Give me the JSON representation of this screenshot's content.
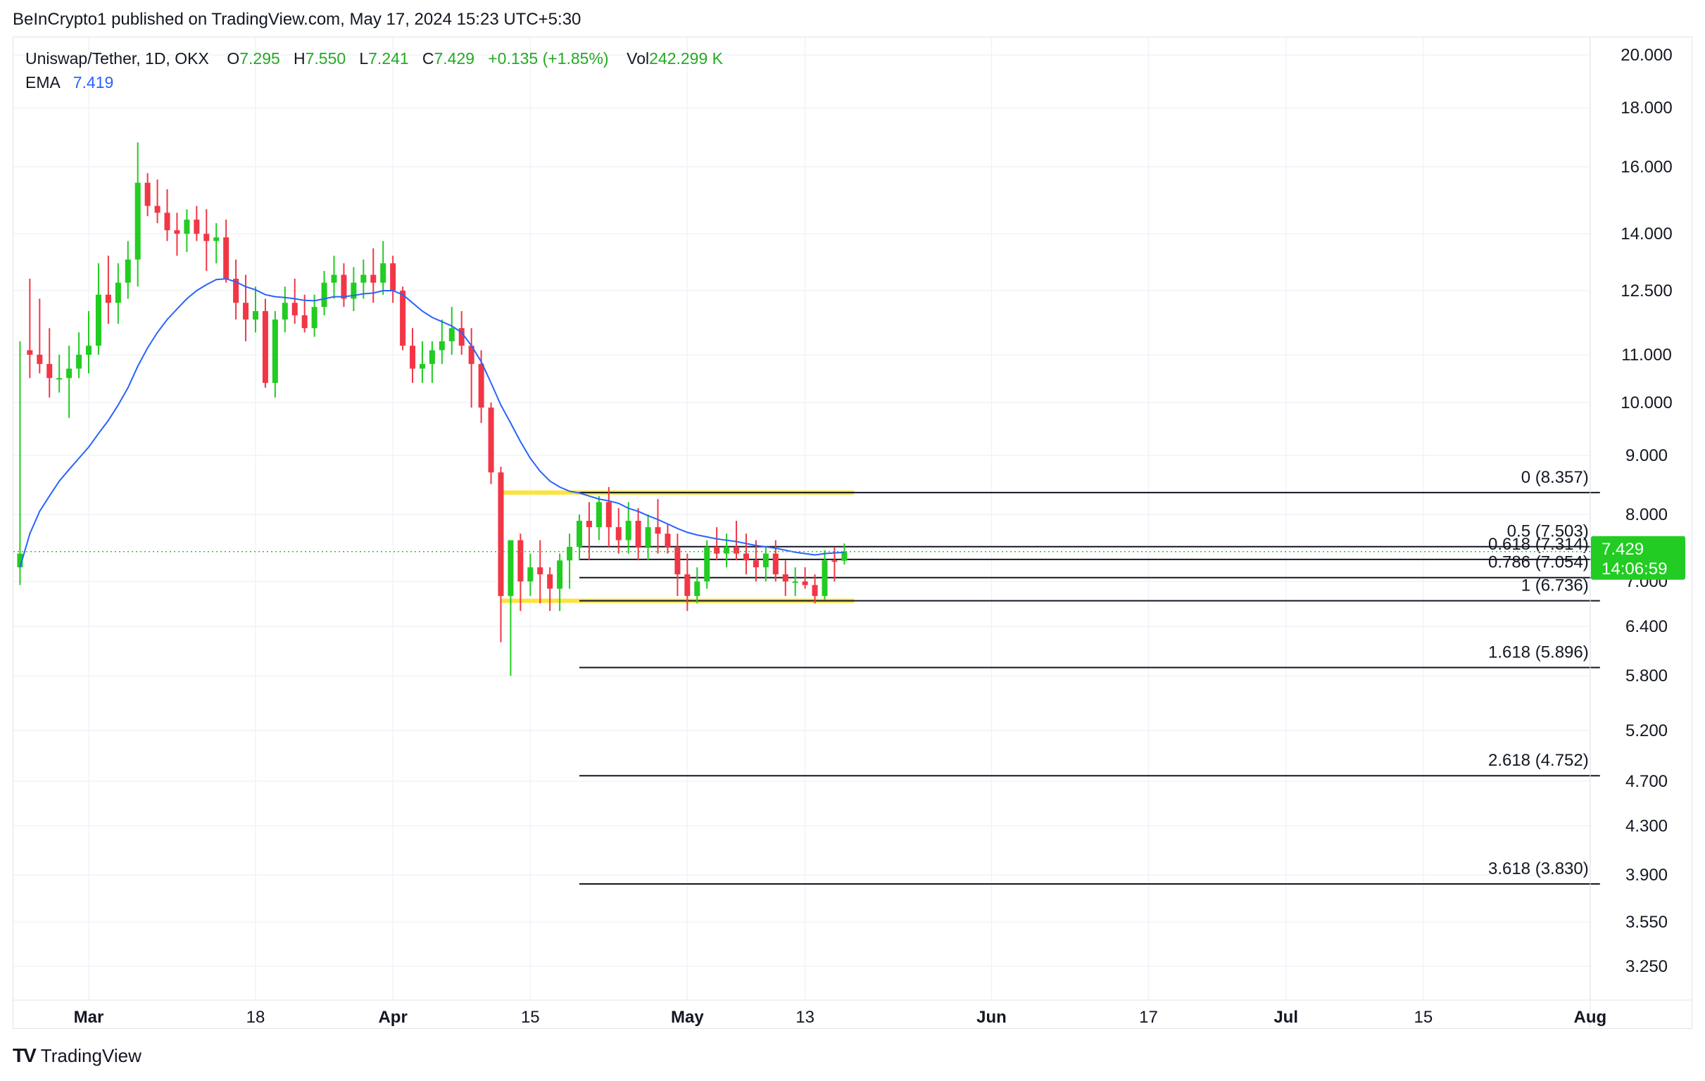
{
  "header": {
    "published": "BeInCrypto1 published on TradingView.com, May 17, 2024 15:23 UTC+5:30"
  },
  "legend": {
    "symbol": "Uniswap/Tether, 1D, OKX",
    "open_label": "O",
    "open": "7.295",
    "high_label": "H",
    "high": "7.550",
    "low_label": "L",
    "low": "7.241",
    "close_label": "C",
    "close": "7.429",
    "change": "+0.135 (+1.85%)",
    "vol_label": "Vol",
    "vol": "242.299 K",
    "ema_label": "EMA",
    "ema": "7.419"
  },
  "footer": {
    "brand": "TradingView",
    "logo": "TV"
  },
  "colors": {
    "up": "#22cc22",
    "down": "#f23645",
    "ema": "#2962ff",
    "zone": "#ffe23a",
    "fib": "#131722",
    "price_badge": "#22cc22"
  },
  "chart_data": {
    "type": "candlestick",
    "scale": "log",
    "grid": true,
    "y_ticks": [
      "20.000",
      "18.000",
      "16.000",
      "14.000",
      "12.500",
      "11.000",
      "10.000",
      "9.000",
      "8.000",
      "7.000",
      "6.400",
      "5.800",
      "5.200",
      "4.700",
      "4.300",
      "3.900",
      "3.550",
      "3.250"
    ],
    "y_tick_values": [
      20,
      18,
      16,
      14,
      12.5,
      11,
      10,
      9,
      8,
      7,
      6.4,
      5.8,
      5.2,
      4.7,
      4.3,
      3.9,
      3.55,
      3.25
    ],
    "x_ticks": [
      "Mar",
      "18",
      "Apr",
      "15",
      "May",
      "13",
      "Jun",
      "17",
      "Jul",
      "15",
      "Aug"
    ],
    "x_tick_days": [
      0,
      17,
      31,
      45,
      61,
      73,
      92,
      108,
      122,
      136,
      153
    ],
    "x_tick_bold": [
      true,
      false,
      true,
      false,
      true,
      false,
      true,
      false,
      true,
      false,
      true
    ],
    "last_price": "7.429",
    "countdown": "14:06:59",
    "ohlc": [
      [
        -7,
        7.2,
        11.3,
        6.95,
        7.4
      ],
      [
        -6,
        11.1,
        12.8,
        10.5,
        11.0
      ],
      [
        -5,
        11.0,
        12.3,
        10.6,
        10.8
      ],
      [
        -4,
        10.8,
        11.6,
        10.1,
        10.5
      ],
      [
        -3,
        10.5,
        11.0,
        10.2,
        10.5
      ],
      [
        -2,
        10.5,
        11.2,
        9.7,
        10.7
      ],
      [
        -1,
        10.7,
        11.5,
        10.5,
        11.0
      ],
      [
        0,
        11.0,
        12.0,
        10.6,
        11.2
      ],
      [
        1,
        11.2,
        13.2,
        11.0,
        12.4
      ],
      [
        2,
        12.4,
        13.4,
        11.7,
        12.2
      ],
      [
        3,
        12.2,
        13.2,
        11.7,
        12.7
      ],
      [
        4,
        12.7,
        13.8,
        12.3,
        13.3
      ],
      [
        5,
        13.3,
        16.8,
        12.6,
        15.5
      ],
      [
        6,
        15.5,
        15.8,
        14.5,
        14.8
      ],
      [
        7,
        14.8,
        15.6,
        14.3,
        14.6
      ],
      [
        8,
        14.6,
        15.3,
        13.8,
        14.1
      ],
      [
        9,
        14.1,
        14.6,
        13.4,
        14.0
      ],
      [
        10,
        14.0,
        14.7,
        13.5,
        14.4
      ],
      [
        11,
        14.4,
        14.8,
        13.8,
        14.0
      ],
      [
        12,
        14.0,
        14.7,
        13.0,
        13.8
      ],
      [
        13,
        13.8,
        14.3,
        13.2,
        13.9
      ],
      [
        14,
        13.9,
        14.4,
        12.7,
        12.8
      ],
      [
        15,
        12.8,
        13.3,
        11.8,
        12.2
      ],
      [
        16,
        12.2,
        12.9,
        11.3,
        11.8
      ],
      [
        17,
        11.8,
        12.6,
        11.5,
        12.0
      ],
      [
        18,
        12.0,
        12.3,
        10.3,
        10.4
      ],
      [
        19,
        10.4,
        12.0,
        10.1,
        11.8
      ],
      [
        20,
        11.8,
        12.6,
        11.5,
        12.2
      ],
      [
        21,
        12.2,
        12.8,
        11.7,
        11.9
      ],
      [
        22,
        11.9,
        12.4,
        11.5,
        11.6
      ],
      [
        23,
        11.6,
        12.4,
        11.4,
        12.1
      ],
      [
        24,
        12.1,
        13.0,
        11.9,
        12.7
      ],
      [
        25,
        12.7,
        13.4,
        12.3,
        12.9
      ],
      [
        26,
        12.9,
        13.2,
        12.1,
        12.3
      ],
      [
        27,
        12.3,
        13.1,
        12.0,
        12.7
      ],
      [
        28,
        12.7,
        13.3,
        12.3,
        12.9
      ],
      [
        29,
        12.9,
        13.6,
        12.2,
        12.7
      ],
      [
        30,
        12.7,
        13.8,
        12.4,
        13.2
      ],
      [
        31,
        13.2,
        13.4,
        12.2,
        12.5
      ],
      [
        32,
        12.5,
        12.6,
        11.1,
        11.2
      ],
      [
        33,
        11.2,
        11.6,
        10.4,
        10.7
      ],
      [
        34,
        10.7,
        11.3,
        10.4,
        10.8
      ],
      [
        35,
        10.8,
        11.3,
        10.4,
        11.1
      ],
      [
        36,
        11.1,
        11.8,
        10.8,
        11.3
      ],
      [
        37,
        11.3,
        12.1,
        11.0,
        11.6
      ],
      [
        38,
        11.6,
        12.0,
        11.0,
        11.2
      ],
      [
        39,
        11.2,
        11.6,
        9.9,
        10.8
      ],
      [
        40,
        10.8,
        11.1,
        9.6,
        9.9
      ],
      [
        41,
        9.9,
        10.0,
        8.5,
        8.7
      ],
      [
        42,
        8.7,
        8.8,
        6.2,
        6.8
      ],
      [
        43,
        6.8,
        7.6,
        5.8,
        7.6
      ],
      [
        44,
        7.6,
        7.7,
        6.6,
        7.0
      ],
      [
        45,
        7.0,
        7.4,
        6.8,
        7.2
      ],
      [
        46,
        7.2,
        7.6,
        6.7,
        7.1
      ],
      [
        47,
        7.1,
        7.2,
        6.6,
        6.9
      ],
      [
        48,
        6.9,
        7.4,
        6.6,
        7.3
      ],
      [
        49,
        7.3,
        7.7,
        6.9,
        7.5
      ],
      [
        50,
        7.5,
        8.0,
        7.3,
        7.9
      ],
      [
        51,
        7.9,
        8.2,
        7.3,
        7.8
      ],
      [
        52,
        7.8,
        8.3,
        7.6,
        8.2
      ],
      [
        53,
        8.2,
        8.45,
        7.5,
        7.8
      ],
      [
        54,
        7.8,
        8.1,
        7.4,
        7.6
      ],
      [
        55,
        7.6,
        8.2,
        7.4,
        7.9
      ],
      [
        56,
        7.9,
        8.1,
        7.3,
        7.5
      ],
      [
        57,
        7.5,
        8.0,
        7.3,
        7.8
      ],
      [
        58,
        7.8,
        8.25,
        7.4,
        7.7
      ],
      [
        59,
        7.7,
        7.85,
        7.4,
        7.5
      ],
      [
        60,
        7.5,
        7.7,
        6.8,
        7.1
      ],
      [
        61,
        7.1,
        7.4,
        6.6,
        6.8
      ],
      [
        62,
        6.8,
        7.2,
        6.7,
        7.0
      ],
      [
        63,
        7.0,
        7.6,
        6.9,
        7.5
      ],
      [
        64,
        7.5,
        7.8,
        7.3,
        7.4
      ],
      [
        65,
        7.4,
        7.7,
        7.2,
        7.5
      ],
      [
        66,
        7.5,
        7.9,
        7.3,
        7.4
      ],
      [
        67,
        7.4,
        7.7,
        7.1,
        7.3
      ],
      [
        68,
        7.3,
        7.6,
        7.0,
        7.2
      ],
      [
        69,
        7.2,
        7.5,
        7.0,
        7.4
      ],
      [
        70,
        7.4,
        7.6,
        7.0,
        7.1
      ],
      [
        71,
        7.1,
        7.3,
        6.8,
        7.0
      ],
      [
        72,
        7.0,
        7.2,
        6.8,
        7.0
      ],
      [
        73,
        7.0,
        7.2,
        6.9,
        6.95
      ],
      [
        74,
        6.95,
        7.1,
        6.7,
        6.8
      ],
      [
        75,
        6.8,
        7.45,
        6.75,
        7.3
      ],
      [
        76,
        7.3,
        7.5,
        7.0,
        7.29
      ],
      [
        77,
        7.295,
        7.55,
        7.241,
        7.429
      ]
    ],
    "ema_points": [
      [
        -7,
        7.2
      ],
      [
        -6,
        7.7
      ],
      [
        -5,
        8.05
      ],
      [
        -4,
        8.3
      ],
      [
        -3,
        8.55
      ],
      [
        -2,
        8.75
      ],
      [
        -1,
        8.95
      ],
      [
        0,
        9.15
      ],
      [
        1,
        9.4
      ],
      [
        2,
        9.65
      ],
      [
        3,
        9.95
      ],
      [
        4,
        10.3
      ],
      [
        5,
        10.75
      ],
      [
        6,
        11.15
      ],
      [
        7,
        11.5
      ],
      [
        8,
        11.8
      ],
      [
        9,
        12.05
      ],
      [
        10,
        12.3
      ],
      [
        11,
        12.5
      ],
      [
        12,
        12.65
      ],
      [
        13,
        12.78
      ],
      [
        14,
        12.8
      ],
      [
        15,
        12.72
      ],
      [
        16,
        12.6
      ],
      [
        17,
        12.52
      ],
      [
        18,
        12.4
      ],
      [
        19,
        12.35
      ],
      [
        20,
        12.33
      ],
      [
        21,
        12.3
      ],
      [
        22,
        12.26
      ],
      [
        23,
        12.25
      ],
      [
        24,
        12.3
      ],
      [
        25,
        12.35
      ],
      [
        26,
        12.35
      ],
      [
        27,
        12.38
      ],
      [
        28,
        12.42
      ],
      [
        29,
        12.44
      ],
      [
        30,
        12.5
      ],
      [
        31,
        12.5
      ],
      [
        32,
        12.4
      ],
      [
        33,
        12.2
      ],
      [
        34,
        12.0
      ],
      [
        35,
        11.85
      ],
      [
        36,
        11.75
      ],
      [
        37,
        11.65
      ],
      [
        38,
        11.5
      ],
      [
        39,
        11.2
      ],
      [
        40,
        10.85
      ],
      [
        41,
        10.4
      ],
      [
        42,
        9.95
      ],
      [
        43,
        9.6
      ],
      [
        44,
        9.25
      ],
      [
        45,
        8.95
      ],
      [
        46,
        8.72
      ],
      [
        47,
        8.55
      ],
      [
        48,
        8.45
      ],
      [
        49,
        8.38
      ],
      [
        50,
        8.35
      ],
      [
        51,
        8.3
      ],
      [
        52,
        8.25
      ],
      [
        53,
        8.22
      ],
      [
        54,
        8.18
      ],
      [
        55,
        8.1
      ],
      [
        56,
        8.05
      ],
      [
        57,
        7.98
      ],
      [
        58,
        7.92
      ],
      [
        59,
        7.85
      ],
      [
        60,
        7.78
      ],
      [
        61,
        7.72
      ],
      [
        62,
        7.68
      ],
      [
        63,
        7.65
      ],
      [
        64,
        7.62
      ],
      [
        65,
        7.6
      ],
      [
        66,
        7.58
      ],
      [
        67,
        7.55
      ],
      [
        68,
        7.52
      ],
      [
        69,
        7.5
      ],
      [
        70,
        7.48
      ],
      [
        71,
        7.45
      ],
      [
        72,
        7.42
      ],
      [
        73,
        7.4
      ],
      [
        74,
        7.38
      ],
      [
        75,
        7.4
      ],
      [
        76,
        7.41
      ],
      [
        77,
        7.419
      ]
    ],
    "zones": [
      {
        "name": "resistance-zone",
        "price": 8.357,
        "from_day": 42,
        "to_day": 78
      },
      {
        "name": "support-zone",
        "price": 6.736,
        "from_day": 42,
        "to_day": 78
      }
    ],
    "fib_levels": [
      {
        "label": "0 (8.357)",
        "price": 8.357
      },
      {
        "label": "0.5 (7.503)",
        "price": 7.503
      },
      {
        "label": "0.618 (7.314)",
        "price": 7.314
      },
      {
        "label": "0.786 (7.054)",
        "price": 7.054
      },
      {
        "label": "1 (6.736)",
        "price": 6.736
      },
      {
        "label": "1.618 (5.896)",
        "price": 5.896
      },
      {
        "label": "2.618 (4.752)",
        "price": 4.752
      },
      {
        "label": "3.618 (3.830)",
        "price": 3.83
      }
    ],
    "fib_start_day": 50,
    "fib_end_day": 154
  }
}
